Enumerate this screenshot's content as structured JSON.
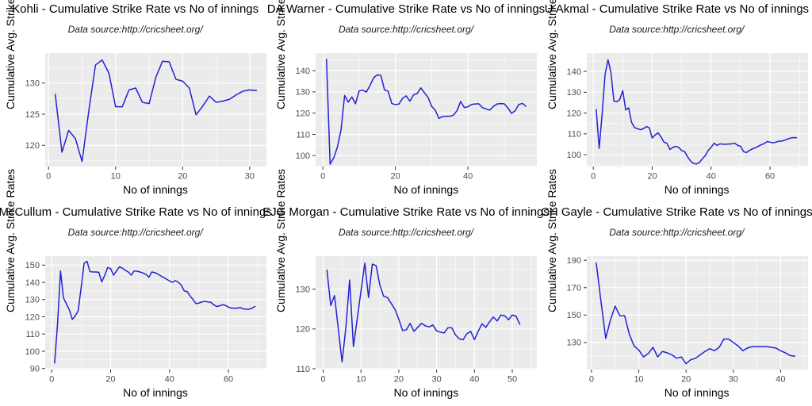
{
  "styles": {
    "panel_bg": "#EBEBEB",
    "grid_color": "#FFFFFF",
    "line_color": "#2222D5",
    "tick_mark_color": "#333333",
    "tick_label_color": "#4D4D4D",
    "text_color": "#000000"
  },
  "chart_data": [
    {
      "type": "line",
      "title": "Kohli - Cumulative Strike Rate vs No of innings",
      "subtitle": "Data source:http://cricsheet.org/",
      "xlabel": "No of innings",
      "ylabel": "Cumulative Avg. Strike Rates",
      "x_start": 1,
      "xlim": [
        -0.5,
        32.5
      ],
      "ylim": [
        116.6,
        134.8
      ],
      "x_ticks": [
        0,
        10,
        20,
        30
      ],
      "x_minor": [
        5,
        15,
        25
      ],
      "y_ticks": [
        120,
        125,
        130
      ],
      "y_minor": [
        117.5,
        122.5,
        127.5,
        132.5
      ],
      "values": [
        128.2,
        118.9,
        122.4,
        121.1,
        117.4,
        125.5,
        132.9,
        133.7,
        131.6,
        126.2,
        126.2,
        128.9,
        129.2,
        126.9,
        126.7,
        130.9,
        133.5,
        133.4,
        130.6,
        130.3,
        129.2,
        124.9,
        126.3,
        127.9,
        126.9,
        127.1,
        127.4,
        128.1,
        128.7,
        128.9,
        128.8
      ]
    },
    {
      "type": "line",
      "title": "DA Warner - Cumulative Strike Rate vs No of innings",
      "subtitle": "Data source:http://cricsheet.org/",
      "xlabel": "No of innings",
      "ylabel": "Cumulative Avg. Strike Rates",
      "x_start": 1,
      "xlim": [
        -2,
        59
      ],
      "ylim": [
        94.9,
        148.2
      ],
      "x_ticks": [
        0,
        20,
        40
      ],
      "x_minor": [
        10,
        30,
        50
      ],
      "y_ticks": [
        100,
        110,
        120,
        130,
        140
      ],
      "y_minor": [
        95,
        105,
        115,
        125,
        135,
        145
      ],
      "values": [
        145.3,
        96,
        99,
        104,
        112,
        128.3,
        125.2,
        127.6,
        124.4,
        130.4,
        130.8,
        129.9,
        133,
        136.6,
        138,
        137.7,
        130.9,
        130.3,
        124.5,
        124,
        124.3,
        127,
        128.1,
        125.6,
        128.6,
        129.2,
        131.9,
        129.6,
        127.4,
        123.2,
        121.4,
        117.5,
        118.4,
        118.5,
        118.5,
        119,
        121.2,
        125.5,
        122.6,
        123,
        124.1,
        124.3,
        124.4,
        122.6,
        122,
        121.4,
        123.1,
        124.3,
        124.5,
        124.4,
        122.5,
        119.9,
        121.1,
        124,
        124.6,
        123.2
      ]
    },
    {
      "type": "line",
      "title": "U Akmal - Cumulative Strike Rate vs No of innings",
      "subtitle": "Data source:http://cricsheet.org/",
      "xlabel": "No of innings",
      "ylabel": "Cumulative Avg. Strike Rates",
      "x_start": 1,
      "xlim": [
        -2.2,
        72.9
      ],
      "ylim": [
        94.3,
        148.8
      ],
      "x_ticks": [
        0,
        20,
        40,
        60
      ],
      "x_minor": [
        10,
        30,
        50,
        70
      ],
      "y_ticks": [
        100,
        110,
        120,
        130,
        140
      ],
      "y_minor": [
        95,
        105,
        115,
        125,
        135,
        145
      ],
      "values": [
        121.7,
        103,
        119.5,
        138.5,
        145.6,
        139.5,
        125.7,
        125.4,
        126.5,
        130.8,
        121.5,
        122.5,
        115.5,
        113,
        112.5,
        112,
        112.5,
        113.5,
        113,
        108,
        109.5,
        110.5,
        108.5,
        106,
        105.5,
        102.5,
        103.5,
        104,
        103.5,
        102,
        101.5,
        99,
        97,
        95.8,
        95.5,
        96.2,
        98,
        99.5,
        102,
        103.5,
        105.5,
        104.5,
        105.2,
        105,
        105,
        105.1,
        105.2,
        105.5,
        104.5,
        104,
        101.5,
        101,
        102,
        102.8,
        103.3,
        104,
        104.8,
        105.3,
        106.3,
        106,
        105.7,
        106,
        106.5,
        106.5,
        107,
        107.5,
        108,
        108.2,
        108.1
      ]
    },
    {
      "type": "line",
      "title": "McCullum - Cumulative Strike Rate vs No of innings",
      "subtitle": "Data source:http://cricsheet.org/",
      "xlabel": "No of innings",
      "ylabel": "Cumulative Avg. Strike Rates",
      "x_start": 1,
      "xlim": [
        -2.2,
        72.9
      ],
      "ylim": [
        89.4,
        155.2
      ],
      "x_ticks": [
        0,
        20,
        40,
        60
      ],
      "x_minor": [
        10,
        30,
        50,
        70
      ],
      "y_ticks": [
        90,
        100,
        110,
        120,
        130,
        140,
        150
      ],
      "y_minor": [
        95,
        105,
        115,
        125,
        135,
        145
      ],
      "values": [
        93.2,
        116,
        146.6,
        131,
        127.5,
        124,
        118.5,
        120.5,
        123.5,
        137,
        151,
        152.2,
        146.2,
        146,
        146,
        145.8,
        140.3,
        144,
        148.6,
        148,
        144.2,
        146.6,
        149,
        148.2,
        147,
        146,
        144.2,
        146.6,
        146.4,
        146,
        145.4,
        144.6,
        143,
        146,
        145.6,
        144.8,
        143.8,
        142.8,
        141.8,
        140.8,
        140,
        141,
        140,
        138.4,
        135,
        134.6,
        132,
        130,
        127.6,
        128,
        128.6,
        129,
        128.6,
        128.4,
        127,
        126,
        126.4,
        127,
        126.6,
        125.6,
        125,
        125,
        125,
        125.4,
        124.6,
        124.4,
        124.4,
        125,
        126
      ]
    },
    {
      "type": "line",
      "title": "EJG Morgan - Cumulative Strike Rate vs No of innings",
      "subtitle": "Data source:http://cricsheet.org/",
      "xlabel": "No of innings",
      "ylabel": "Cumulative Avg. Strike Rates",
      "x_start": 1,
      "xlim": [
        -2,
        56.5
      ],
      "ylim": [
        109.8,
        138.3
      ],
      "x_ticks": [
        0,
        10,
        20,
        30,
        40,
        50
      ],
      "x_minor": [
        5,
        15,
        25,
        35,
        45,
        55
      ],
      "y_ticks": [
        110,
        120,
        130
      ],
      "y_minor": [
        115,
        125,
        135
      ],
      "values": [
        134.8,
        125.9,
        128.4,
        120,
        111.7,
        120.3,
        132.3,
        115.6,
        122.5,
        129.5,
        136.5,
        127.9,
        136.3,
        135.9,
        131,
        128.2,
        127.9,
        126.4,
        124.9,
        122.4,
        119.6,
        119.8,
        121.4,
        119.4,
        120.4,
        121.4,
        120.8,
        120.5,
        121,
        119.5,
        119.2,
        119,
        120.3,
        120.3,
        118.5,
        117.5,
        117.3,
        118.8,
        119.4,
        117.3,
        119.4,
        121.3,
        120.4,
        121.8,
        123,
        122,
        123.5,
        123.3,
        122.3,
        123.5,
        123.2,
        121.2
      ]
    },
    {
      "type": "line",
      "title": "CH Gayle - Cumulative Strike Rate vs No of innings",
      "subtitle": "Data source:http://cricsheet.org/",
      "xlabel": "No of innings",
      "ylabel": "Cumulative Avg. Strike Rates",
      "x_start": 1,
      "xlim": [
        -1,
        45.8
      ],
      "ylim": [
        110.3,
        193
      ],
      "x_ticks": [
        0,
        10,
        20,
        30,
        40
      ],
      "x_minor": [
        5,
        15,
        25,
        35,
        45
      ],
      "y_ticks": [
        130,
        150,
        170,
        190
      ],
      "y_minor": [
        120,
        140,
        160,
        180
      ],
      "values": [
        188,
        160,
        133,
        146.5,
        156.5,
        149.5,
        149.5,
        136,
        127.5,
        124.5,
        119.5,
        122,
        126.5,
        119.5,
        123.5,
        122.5,
        121,
        118.5,
        119.5,
        114.5,
        117.5,
        118.5,
        121,
        123.5,
        125.5,
        124,
        126.5,
        132.5,
        132.5,
        130,
        127.5,
        124,
        126,
        127,
        127,
        127,
        127,
        126.5,
        126,
        124,
        122.5,
        120.5,
        120
      ]
    }
  ]
}
